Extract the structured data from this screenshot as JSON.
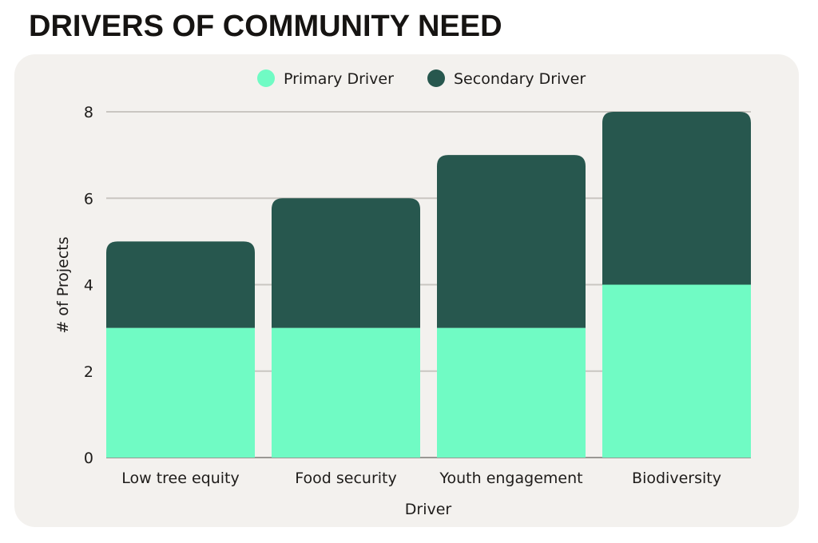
{
  "title": "DRIVERS OF COMMUNITY NEED",
  "chart_data": {
    "type": "bar",
    "stacked": true,
    "title": "DRIVERS OF COMMUNITY NEED",
    "xlabel": "Driver",
    "ylabel": "# of Projects",
    "ylim": [
      0,
      8
    ],
    "yticks": [
      "0",
      "2",
      "4",
      "6",
      "8"
    ],
    "grid": true,
    "legend_position": "top-center",
    "categories": [
      "Low tree equity",
      "Food security",
      "Youth engagement",
      "Biodiversity"
    ],
    "series": [
      {
        "name": "Primary Driver",
        "color": "#70FBC4",
        "values": [
          3,
          3,
          3,
          4
        ]
      },
      {
        "name": "Secondary Driver",
        "color": "#27574E",
        "values": [
          2,
          3,
          4,
          4
        ]
      }
    ]
  }
}
